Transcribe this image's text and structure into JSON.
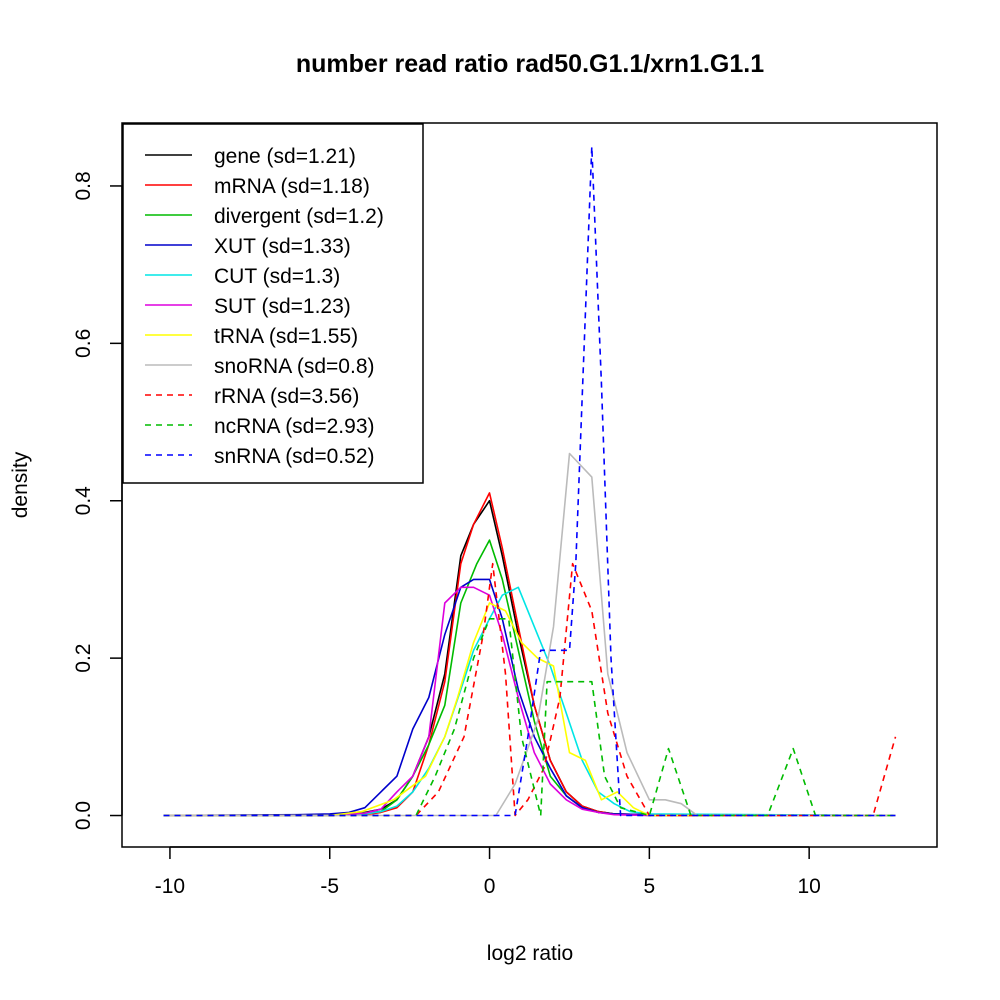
{
  "chart_data": {
    "type": "line",
    "title": "number read ratio rad50.G1.1/xrn1.G1.1",
    "xlabel": "log2 ratio",
    "ylabel": "density",
    "xlim": [
      -11.5,
      14
    ],
    "ylim": [
      -0.04,
      0.88
    ],
    "xticks": [
      -10,
      -5,
      0,
      5,
      10
    ],
    "xtick_labels": [
      "-10",
      "-5",
      "0",
      "5",
      "10"
    ],
    "yticks": [
      0.0,
      0.2,
      0.4,
      0.6,
      0.8
    ],
    "ytick_labels": [
      "0.0",
      "0.2",
      "0.4",
      "0.6",
      "0.8"
    ],
    "legend_position": "top-left",
    "series": [
      {
        "name": "gene (sd=1.21)",
        "color": "#000000",
        "dash": "solid",
        "x": [
          -10.2,
          -5,
          -4.4,
          -3.9,
          -3.4,
          -2.9,
          -2.4,
          -1.9,
          -1.4,
          -0.9,
          -0.5,
          0,
          0.4,
          0.9,
          1.4,
          1.9,
          2.4,
          2.9,
          3.4,
          3.9,
          5,
          6,
          12.7
        ],
        "y": [
          0,
          0,
          0.002,
          0.004,
          0.008,
          0.02,
          0.05,
          0.1,
          0.18,
          0.33,
          0.37,
          0.4,
          0.33,
          0.23,
          0.14,
          0.07,
          0.03,
          0.012,
          0.005,
          0.002,
          0.001,
          0,
          0
        ]
      },
      {
        "name": "mRNA (sd=1.18)",
        "color": "#ff0000",
        "dash": "solid",
        "x": [
          -10.2,
          -5,
          -3.9,
          -3.4,
          -2.9,
          -2.4,
          -1.9,
          -1.4,
          -0.9,
          -0.5,
          0,
          0.4,
          0.9,
          1.4,
          1.9,
          2.4,
          2.9,
          3.4,
          3.9,
          5,
          6,
          12.7
        ],
        "y": [
          0,
          0,
          0.001,
          0.004,
          0.01,
          0.03,
          0.09,
          0.17,
          0.32,
          0.37,
          0.41,
          0.34,
          0.24,
          0.14,
          0.07,
          0.03,
          0.012,
          0.005,
          0.002,
          0.001,
          0,
          0
        ]
      },
      {
        "name": "divergent (sd=1.2)",
        "color": "#00bb00",
        "dash": "solid",
        "x": [
          -10.2,
          -5,
          -3.4,
          -2.9,
          -2.4,
          -1.9,
          -1.4,
          -0.9,
          -0.4,
          0,
          0.4,
          0.9,
          1.4,
          1.9,
          2.4,
          2.9,
          3.4,
          3.9,
          5,
          12.7
        ],
        "y": [
          0,
          0,
          0.005,
          0.02,
          0.05,
          0.09,
          0.14,
          0.27,
          0.32,
          0.35,
          0.3,
          0.21,
          0.12,
          0.05,
          0.025,
          0.01,
          0.004,
          0.002,
          0,
          0
        ]
      },
      {
        "name": "XUT (sd=1.33)",
        "color": "#0000cc",
        "dash": "solid",
        "x": [
          -10.2,
          -6,
          -5,
          -4.4,
          -3.9,
          -3.4,
          -2.9,
          -2.4,
          -1.9,
          -1.4,
          -0.9,
          -0.5,
          0,
          0.4,
          0.9,
          1.4,
          1.9,
          2.4,
          2.9,
          3.4,
          3.9,
          5,
          12.7
        ],
        "y": [
          0,
          0.001,
          0.002,
          0.004,
          0.01,
          0.03,
          0.05,
          0.11,
          0.15,
          0.23,
          0.29,
          0.3,
          0.3,
          0.25,
          0.16,
          0.1,
          0.06,
          0.025,
          0.01,
          0.004,
          0.002,
          0.001,
          0
        ]
      },
      {
        "name": "CUT (sd=1.3)",
        "color": "#00e5e5",
        "dash": "solid",
        "x": [
          -10.2,
          -5,
          -3.9,
          -3.4,
          -2.9,
          -2.4,
          -1.9,
          -1.4,
          -0.9,
          -0.5,
          0,
          0.4,
          0.9,
          1.4,
          1.9,
          2.4,
          2.9,
          3.4,
          3.9,
          4.4,
          5,
          12.7
        ],
        "y": [
          0,
          0,
          0.002,
          0.005,
          0.012,
          0.03,
          0.06,
          0.1,
          0.16,
          0.21,
          0.25,
          0.28,
          0.29,
          0.24,
          0.19,
          0.13,
          0.07,
          0.03,
          0.015,
          0.005,
          0.002,
          0
        ]
      },
      {
        "name": "SUT (sd=1.23)",
        "color": "#dd00dd",
        "dash": "solid",
        "x": [
          -10.2,
          -5,
          -3.9,
          -3.4,
          -2.9,
          -2.4,
          -1.9,
          -1.4,
          -0.9,
          -0.5,
          0,
          0.4,
          0.9,
          1.4,
          1.9,
          2.4,
          2.9,
          3.4,
          3.9,
          5,
          12.7
        ],
        "y": [
          0,
          0,
          0.003,
          0.008,
          0.03,
          0.05,
          0.1,
          0.27,
          0.29,
          0.29,
          0.28,
          0.23,
          0.15,
          0.08,
          0.04,
          0.02,
          0.008,
          0.004,
          0.001,
          0,
          0
        ]
      },
      {
        "name": "tRNA (sd=1.55)",
        "color": "#ffff00",
        "dash": "solid",
        "x": [
          -10.2,
          -5,
          -4,
          -3,
          -2,
          -1.4,
          -1,
          -0.5,
          0,
          0.5,
          1,
          1.5,
          2,
          2.5,
          3,
          3.5,
          4,
          4.5,
          5,
          12.7
        ],
        "y": [
          0,
          0,
          0.005,
          0.02,
          0.05,
          0.1,
          0.15,
          0.22,
          0.27,
          0.26,
          0.22,
          0.2,
          0.19,
          0.08,
          0.07,
          0.02,
          0.03,
          0.01,
          0,
          0
        ]
      },
      {
        "name": "snoRNA (sd=0.8)",
        "color": "#bbbbbb",
        "dash": "solid",
        "x": [
          -10.2,
          0.2,
          0.8,
          1.5,
          2,
          2.5,
          3.2,
          3.7,
          4.3,
          5,
          5.5,
          6,
          6.5,
          12.7
        ],
        "y": [
          0,
          0,
          0.04,
          0.12,
          0.24,
          0.46,
          0.43,
          0.18,
          0.08,
          0.02,
          0.02,
          0.015,
          0,
          0
        ]
      },
      {
        "name": "rRNA (sd=3.56)",
        "color": "#ff0000",
        "dash": "dashed",
        "x": [
          -10.2,
          -2.3,
          -1.6,
          -0.8,
          -0.2,
          0.1,
          0.5,
          0.8,
          1.2,
          1.7,
          2.2,
          2.6,
          3.2,
          3.7,
          4.3,
          5,
          12,
          12.7
        ],
        "y": [
          0,
          0,
          0.03,
          0.1,
          0.23,
          0.32,
          0.18,
          0,
          0.02,
          0.06,
          0.15,
          0.32,
          0.26,
          0.13,
          0.05,
          0,
          0,
          0.1
        ]
      },
      {
        "name": "ncRNA (sd=2.93)",
        "color": "#00bb00",
        "dash": "dashed",
        "x": [
          -10.2,
          -2.3,
          -1.7,
          -1.1,
          -0.5,
          0,
          0.6,
          1,
          1.3,
          1.6,
          1.8,
          2.4,
          3.2,
          3.6,
          4.1,
          5,
          5.6,
          6.3,
          8.7,
          9.5,
          10.2,
          12.7
        ],
        "y": [
          0,
          0,
          0.05,
          0.11,
          0.2,
          0.25,
          0.25,
          0.1,
          0.05,
          0,
          0.17,
          0.17,
          0.17,
          0.05,
          0.01,
          0,
          0.085,
          0,
          0,
          0.085,
          0,
          0
        ]
      },
      {
        "name": "snRNA (sd=0.52)",
        "color": "#0000ff",
        "dash": "dashed",
        "x": [
          -10.2,
          0.8,
          1.2,
          1.6,
          2,
          2.5,
          2.7,
          3.2,
          3.5,
          3.8,
          4.1,
          12.7
        ],
        "y": [
          0,
          0,
          0.1,
          0.21,
          0.21,
          0.21,
          0.32,
          0.85,
          0.55,
          0.2,
          0,
          0
        ]
      }
    ]
  }
}
